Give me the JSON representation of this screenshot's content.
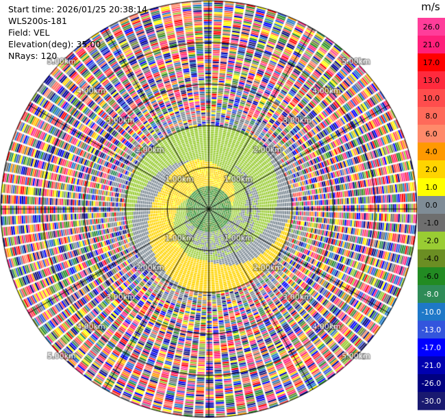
{
  "header": {
    "start_time": "Start time: 2026/01/25 20:38:14",
    "site": "WLS200s-181",
    "field": "Field: VEL",
    "elevation": "Elevation(deg): 35.00",
    "nrays": "NRays: 120"
  },
  "chart_data": {
    "type": "ppi",
    "title": "",
    "field": "VEL",
    "elevation_deg": 35.0,
    "nrays": 120,
    "range_max_km": 5.0,
    "range_ring_labels": [
      "1.00km",
      "2.00km",
      "3.00km",
      "4.00km",
      "5.00km"
    ],
    "colorbar": {
      "unit": "m/s",
      "ticks": [
        "26.0",
        "21.0",
        "17.0",
        "13.0",
        "10.0",
        "8.0",
        "6.0",
        "4.0",
        "2.0",
        "1.0",
        "0.0",
        "-1.0",
        "-2.0",
        "-4.0",
        "-6.0",
        "-8.0",
        "-10.0",
        "-13.0",
        "-17.0",
        "-21.0",
        "-26.0",
        "-30.0"
      ],
      "colors": [
        "#ff3d9a",
        "#ff1f7a",
        "#ff0000",
        "#ff2a3d",
        "#ff4d4d",
        "#ff6a5a",
        "#ff8a6a",
        "#ff9900",
        "#ffd400",
        "#ffff00",
        "#7f8c96",
        "#6e6e6e",
        "#99cc33",
        "#6b8e23",
        "#228b22",
        "#2e8b57",
        "#1e78c8",
        "#3355dd",
        "#0000ff",
        "#0000b0",
        "#000080",
        "#191970"
      ]
    }
  }
}
